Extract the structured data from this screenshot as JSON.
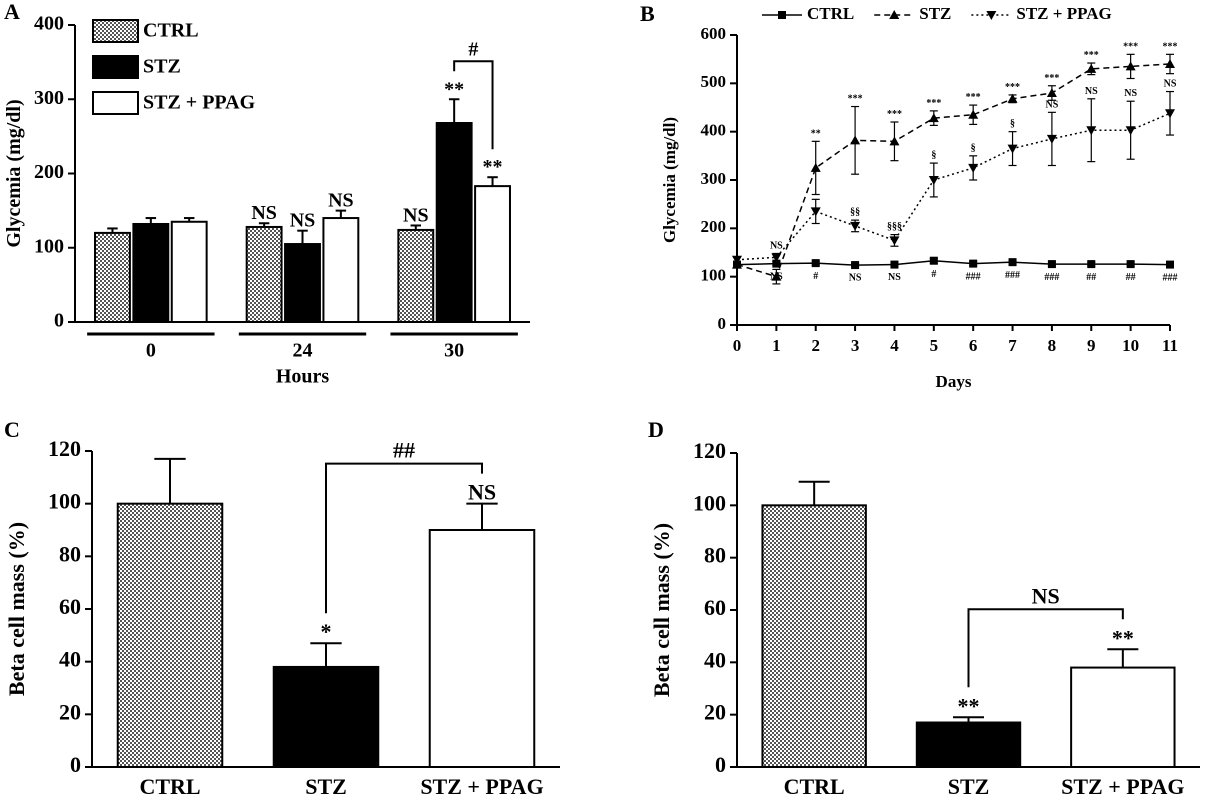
{
  "chart_data": [
    {
      "panel": "A",
      "type": "bar",
      "categories": [
        "0",
        "24",
        "30"
      ],
      "x_label": "Hours",
      "y_label": "Glycemia (mg/dl)",
      "ylim": [
        0,
        400
      ],
      "yticks": [
        0,
        100,
        200,
        300,
        400
      ],
      "legend": "upper left",
      "series": [
        {
          "name": "CTRL",
          "fill": "checkered",
          "values": [
            120,
            128,
            124
          ],
          "errors": [
            6,
            5,
            6
          ],
          "significance": [
            null,
            "NS",
            "NS"
          ]
        },
        {
          "name": "STZ",
          "fill": "black",
          "values": [
            132,
            105,
            268
          ],
          "errors": [
            8,
            18,
            32
          ],
          "significance": [
            null,
            "NS",
            "**"
          ]
        },
        {
          "name": "STZ + PPAG",
          "fill": "white",
          "values": [
            135,
            140,
            183
          ],
          "errors": [
            5,
            10,
            12
          ],
          "significance": [
            null,
            "NS",
            "**"
          ]
        }
      ],
      "brackets": [
        {
          "category": "30",
          "from": "STZ",
          "to": "STZ + PPAG",
          "label": "#"
        }
      ]
    },
    {
      "panel": "B",
      "type": "line",
      "x": [
        0,
        1,
        2,
        3,
        4,
        5,
        6,
        7,
        8,
        9,
        10,
        11
      ],
      "x_label": "Days",
      "y_label": "Glycemia (mg/dl)",
      "xlim": [
        0,
        11
      ],
      "xticks": [
        0,
        1,
        2,
        3,
        4,
        5,
        6,
        7,
        8,
        9,
        10,
        11
      ],
      "ylim": [
        0,
        600
      ],
      "yticks": [
        0,
        100,
        200,
        300,
        400,
        500,
        600
      ],
      "legend": "top",
      "series": [
        {
          "name": "CTRL",
          "line_style": "solid",
          "marker": "square",
          "label_position": "below",
          "values": [
            125,
            127,
            128,
            124,
            125,
            133,
            127,
            130,
            126,
            126,
            126,
            125
          ],
          "errors": [
            5,
            4,
            4,
            3,
            3,
            5,
            4,
            4,
            4,
            4,
            4,
            4
          ],
          "significance": [
            null,
            "NS",
            "#",
            "NS",
            "NS",
            "#",
            "###",
            "###",
            "###",
            "##",
            "##",
            "###"
          ]
        },
        {
          "name": "STZ",
          "line_style": "dashed",
          "marker": "triangle-up",
          "label_position": "above",
          "values": [
            125,
            100,
            325,
            382,
            380,
            428,
            435,
            468,
            480,
            530,
            535,
            540
          ],
          "errors": [
            5,
            15,
            55,
            70,
            40,
            15,
            20,
            8,
            15,
            12,
            25,
            20
          ],
          "significance": [
            null,
            null,
            "**",
            "***",
            "***",
            "***",
            "***",
            "***",
            "***",
            "***",
            "***",
            "***"
          ]
        },
        {
          "name": "STZ + PPAG",
          "line_style": "dotted",
          "marker": "triangle-down",
          "label_position": "above",
          "values": [
            135,
            140,
            235,
            205,
            175,
            300,
            325,
            365,
            385,
            403,
            403,
            438
          ],
          "errors": [
            5,
            8,
            25,
            12,
            12,
            35,
            25,
            35,
            55,
            65,
            60,
            45
          ],
          "significance": [
            null,
            "NS",
            null,
            "§§",
            "§§§",
            "§",
            "§",
            "§",
            "NS",
            "NS",
            "NS",
            "NS"
          ]
        }
      ]
    },
    {
      "panel": "C",
      "type": "bar",
      "categories": [
        "CTRL",
        "STZ",
        "STZ + PPAG"
      ],
      "y_label": "Beta cell mass (%)",
      "ylim": [
        0,
        120
      ],
      "yticks": [
        0,
        20,
        40,
        60,
        80,
        100,
        120
      ],
      "values": [
        100,
        38,
        90
      ],
      "errors": [
        17,
        9,
        10
      ],
      "fills": [
        "checkered",
        "black",
        "white"
      ],
      "significance": [
        null,
        "*",
        "NS"
      ],
      "brackets": [
        {
          "from": "STZ",
          "to": "STZ + PPAG",
          "label": "##"
        }
      ]
    },
    {
      "panel": "D",
      "type": "bar",
      "categories": [
        "CTRL",
        "STZ",
        "STZ + PPAG"
      ],
      "y_label": "Beta cell mass (%)",
      "ylim": [
        0,
        120
      ],
      "yticks": [
        0,
        20,
        40,
        60,
        80,
        100,
        120
      ],
      "values": [
        100,
        17,
        38
      ],
      "errors": [
        9,
        2,
        7
      ],
      "fills": [
        "checkered",
        "black",
        "white"
      ],
      "significance": [
        null,
        "**",
        "**"
      ],
      "brackets": [
        {
          "from": "STZ",
          "to": "STZ + PPAG",
          "label": "NS"
        }
      ]
    }
  ]
}
